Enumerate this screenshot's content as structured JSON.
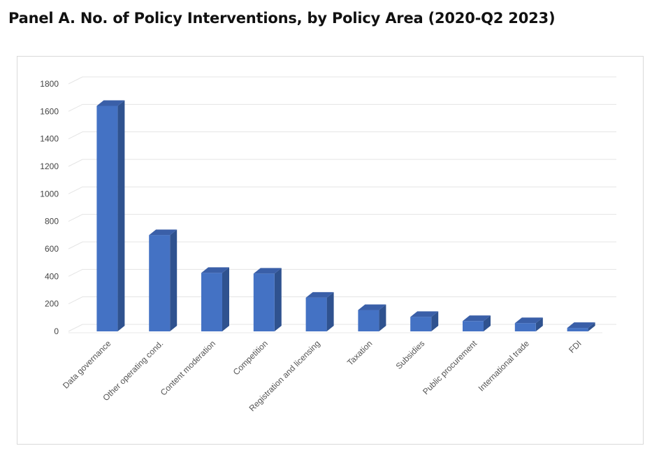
{
  "title": "Panel A. No. of Policy Interventions, by Policy Area (2020-Q2 2023)",
  "colors": {
    "bar_front": "#4472c4",
    "bar_side": "#2f528f",
    "bar_top": "#3a5fa8",
    "grid": "#e4e4e4"
  },
  "chart_data": {
    "type": "bar",
    "title": "Panel A. No. of Policy Interventions, by Policy Area (2020-Q2 2023)",
    "xlabel": "",
    "ylabel": "",
    "ylim": [
      0,
      1800
    ],
    "ytick_step": 200,
    "yticks": [
      "0",
      "200",
      "400",
      "600",
      "800",
      "1000",
      "1200",
      "1400",
      "1600",
      "1800"
    ],
    "grid": true,
    "legend": "none",
    "categories": [
      "Data governance",
      "Other operating cond.",
      "Content moderation",
      "Competition",
      "Registration and licensing",
      "Taxation",
      "Subsidies",
      "Public procurement",
      "International trade",
      "FDI"
    ],
    "values": [
      1640,
      700,
      425,
      420,
      245,
      155,
      105,
      75,
      60,
      25
    ]
  }
}
